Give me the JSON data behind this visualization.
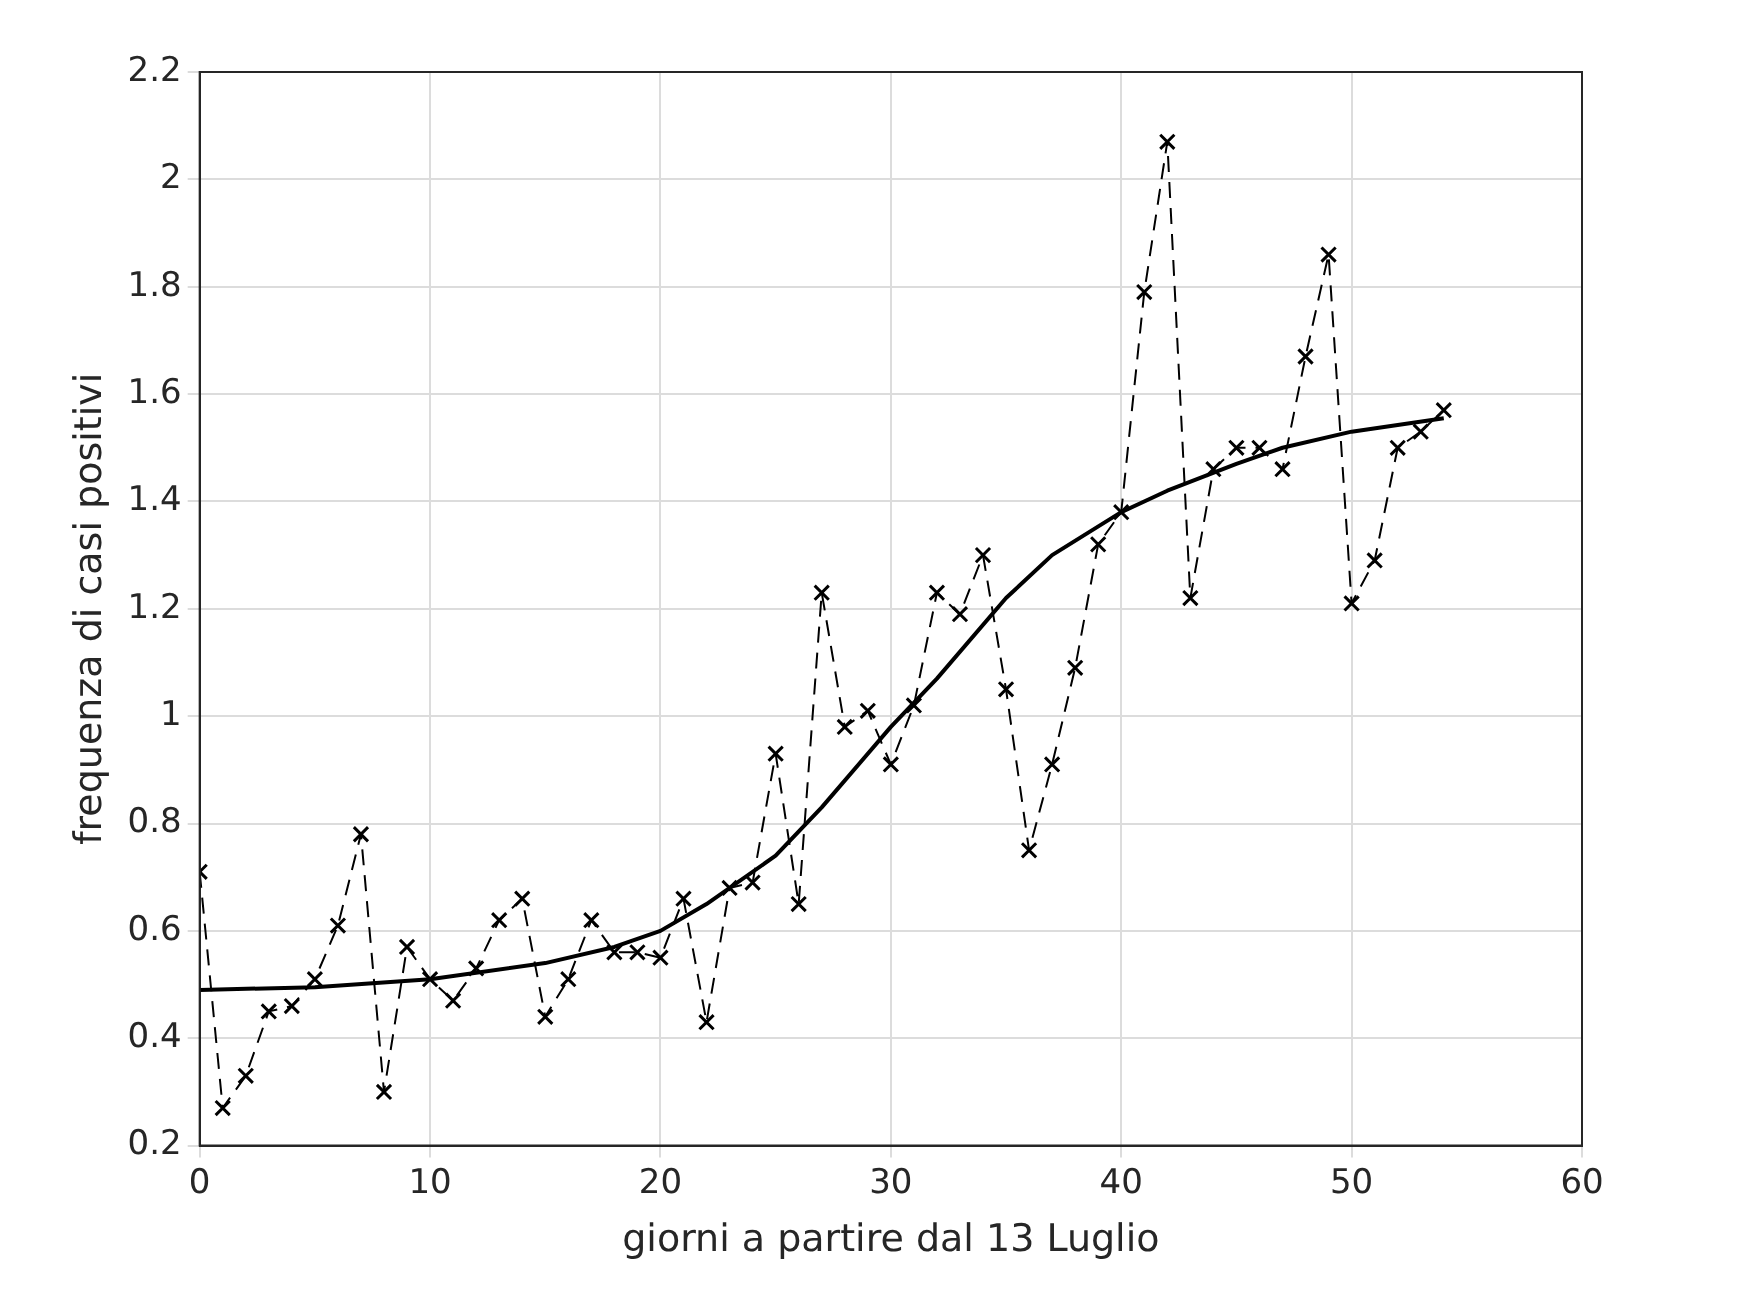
{
  "chart_data": {
    "type": "line",
    "xlabel": "giorni a partire dal 13 Luglio",
    "ylabel": "frequenza di casi positivi",
    "xlim": [
      0,
      60
    ],
    "xticks": [
      0,
      10,
      20,
      30,
      40,
      50,
      60
    ],
    "ylim": [
      0.2,
      2.2
    ],
    "yticks": [
      0.2,
      0.4,
      0.6,
      0.8,
      1,
      1.2,
      1.4,
      1.6,
      1.8,
      2,
      2.2
    ],
    "grid": true,
    "legend": false,
    "series": [
      {
        "color": "#000000",
        "marker": "cross",
        "line_style": "dashed",
        "x": [
          0,
          1,
          2,
          3,
          4,
          5,
          6,
          7,
          8,
          9,
          10,
          11,
          12,
          13,
          14,
          15,
          16,
          17,
          18,
          19,
          20,
          21,
          22,
          23,
          24,
          25,
          26,
          27,
          28,
          29,
          30,
          31,
          32,
          33,
          34,
          35,
          36,
          37,
          38,
          39,
          40,
          41,
          42,
          43,
          44,
          45,
          46,
          47,
          48,
          49,
          50,
          51,
          52,
          53,
          54
        ],
        "values": [
          0.71,
          0.27,
          0.33,
          0.45,
          0.46,
          0.51,
          0.61,
          0.78,
          0.3,
          0.57,
          0.51,
          0.47,
          0.53,
          0.62,
          0.66,
          0.44,
          0.51,
          0.62,
          0.56,
          0.56,
          0.55,
          0.66,
          0.43,
          0.68,
          0.69,
          0.93,
          0.65,
          1.23,
          0.98,
          1.01,
          0.91,
          1.02,
          1.23,
          1.19,
          1.3,
          1.05,
          0.75,
          0.91,
          1.09,
          1.32,
          1.38,
          1.79,
          2.07,
          1.22,
          1.46,
          1.5,
          1.5,
          1.46,
          1.67,
          1.86,
          1.21,
          1.29,
          1.5,
          1.53,
          1.57
        ]
      },
      {
        "color": "#000000",
        "marker": "none",
        "line_style": "solid",
        "x": [
          0,
          5,
          10,
          15,
          18,
          20,
          22,
          25,
          27,
          30,
          32,
          35,
          37,
          40,
          42,
          45,
          47,
          50,
          54
        ],
        "values": [
          0.49,
          0.495,
          0.51,
          0.54,
          0.57,
          0.6,
          0.65,
          0.74,
          0.83,
          0.98,
          1.07,
          1.22,
          1.3,
          1.38,
          1.42,
          1.47,
          1.5,
          1.53,
          1.555
        ]
      }
    ]
  }
}
